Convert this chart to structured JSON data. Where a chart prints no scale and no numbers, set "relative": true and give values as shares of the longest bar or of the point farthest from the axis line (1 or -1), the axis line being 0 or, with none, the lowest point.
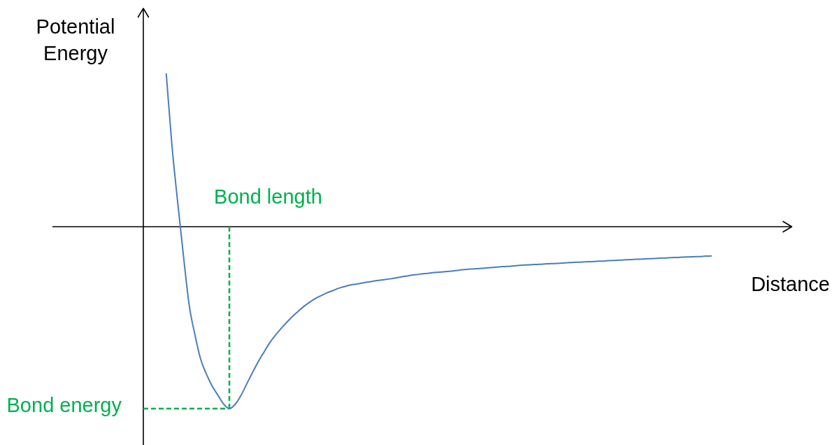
{
  "chart_data": {
    "type": "line",
    "ylabel": "Potential Energy",
    "xlabel": "Distance",
    "relative": true,
    "marker": "none",
    "annotations": [
      "Bond length"
    ],
    "categories": [
      null,
      null,
      null,
      null,
      null,
      null,
      null,
      null,
      null,
      null,
      null,
      null,
      null,
      null,
      null,
      null,
      null,
      null,
      null,
      null,
      null,
      null,
      null,
      null,
      null,
      null,
      null,
      null,
      null,
      null,
      null,
      null,
      null,
      null,
      null,
      null,
      null,
      null,
      null,
      null,
      null,
      null,
      null,
      null,
      null,
      null,
      null,
      null,
      null,
      null,
      null,
      null,
      null,
      null,
      null,
      null,
      null,
      null,
      null,
      null,
      null,
      null,
      null,
      null,
      null,
      null,
      null,
      null,
      null,
      null,
      null,
      null,
      null,
      null,
      null,
      null,
      null,
      null,
      null,
      null,
      null,
      null,
      null,
      null,
      null,
      null,
      null,
      null,
      null,
      null,
      null,
      null,
      null,
      null,
      null,
      null,
      null,
      null,
      null,
      null,
      null,
      null,
      null,
      null,
      null,
      null,
      null,
      null,
      null,
      null,
      null,
      null,
      null,
      null
    ],
    "color": "#4a7ebb",
    "values": [
      null,
      null,
      null,
      null,
      0.84,
      0.443,
      0.131,
      -0.162,
      -0.432,
      -0.594,
      -0.729,
      -0.81,
      -0.876,
      -0.926,
      -0.975,
      -1,
      -0.977,
      -0.929,
      -0.866,
      -0.804,
      -0.744,
      -0.691,
      -0.64,
      -0.598,
      -0.56,
      -0.526,
      -0.493,
      -0.465,
      -0.438,
      -0.415,
      -0.395,
      -0.379,
      -0.364,
      -0.352,
      -0.339,
      -0.33,
      -0.321,
      -0.316,
      -0.311,
      -0.305,
      -0.3,
      -0.295,
      -0.291,
      -0.287,
      -0.282,
      -0.276,
      -0.271,
      -0.265,
      -0.262,
      -0.258,
      -0.255,
      -0.251,
      -0.249,
      -0.246,
      -0.243,
      -0.239,
      -0.236,
      -0.233,
      -0.231,
      -0.229,
      -0.226,
      -0.224,
      -0.221,
      -0.219,
      -0.217,
      -0.214,
      -0.212,
      -0.21,
      -0.208,
      -0.207,
      -0.205,
      -0.203,
      -0.202,
      -0.2,
      -0.198,
      -0.196,
      -0.195,
      -0.193,
      -0.192,
      -0.19,
      -0.189,
      -0.187,
      -0.186,
      -0.184,
      -0.182,
      -0.181,
      -0.179,
      -0.178,
      -0.176,
      -0.175,
      -0.173,
      -0.172,
      -0.17,
      -0.169,
      -0.167,
      -0.166,
      -0.165,
      -0.164,
      -0.162,
      -0.161,
      null,
      null,
      null,
      null,
      null,
      null,
      null,
      null,
      null,
      null,
      null,
      null,
      null,
      null
    ],
    "ref_lines": [
      {
        "axis": "y",
        "value": -1,
        "label": "Bond energy",
        "color": "#00b050",
        "line_style": "dashed"
      }
    ]
  }
}
